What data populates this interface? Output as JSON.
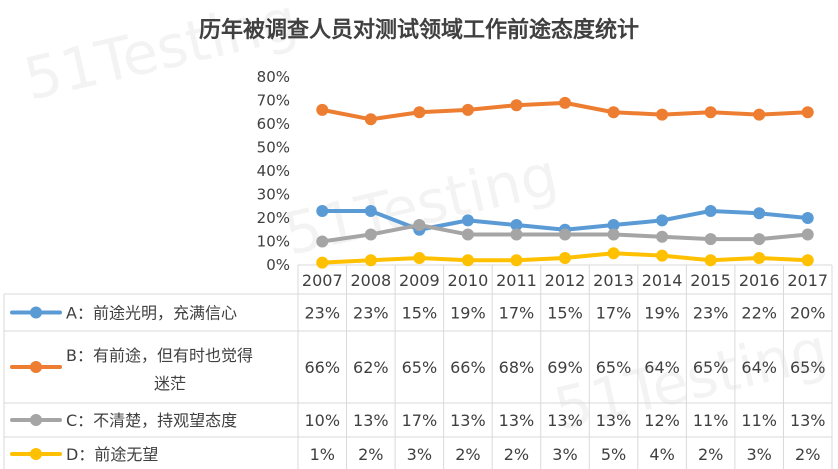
{
  "chart_data": {
    "type": "line",
    "title": "历年被调查人员对测试领域工作前途态度统计",
    "categories": [
      "2007",
      "2008",
      "2009",
      "2010",
      "2011",
      "2012",
      "2013",
      "2014",
      "2015",
      "2016",
      "2017"
    ],
    "ylim": [
      0,
      80
    ],
    "ytick_labels": [
      "0%",
      "10%",
      "20%",
      "30%",
      "40%",
      "50%",
      "60%",
      "70%",
      "80%"
    ],
    "grid": false,
    "legend_placement": "data-table-left",
    "series": [
      {
        "name": "A：前途光明，充满信心",
        "color": "#5B9BD5",
        "values": [
          23,
          23,
          15,
          19,
          17,
          15,
          17,
          19,
          23,
          22,
          20
        ],
        "cells": [
          "23%",
          "23%",
          "15%",
          "19%",
          "17%",
          "15%",
          "17%",
          "19%",
          "23%",
          "22%",
          "20%"
        ]
      },
      {
        "name": "B：有前途，但有时也觉得迷茫",
        "name_lines": [
          "B：有前途，但有时也觉得",
          "迷茫"
        ],
        "color": "#ED7D31",
        "values": [
          66,
          62,
          65,
          66,
          68,
          69,
          65,
          64,
          65,
          64,
          65
        ],
        "cells": [
          "66%",
          "62%",
          "65%",
          "66%",
          "68%",
          "69%",
          "65%",
          "64%",
          "65%",
          "64%",
          "65%"
        ]
      },
      {
        "name": "C：不清楚，持观望态度",
        "color": "#A5A5A5",
        "values": [
          10,
          13,
          17,
          13,
          13,
          13,
          13,
          12,
          11,
          11,
          13
        ],
        "cells": [
          "10%",
          "13%",
          "17%",
          "13%",
          "13%",
          "13%",
          "13%",
          "12%",
          "11%",
          "11%",
          "13%"
        ]
      },
      {
        "name": "D：前途无望",
        "color": "#FFC000",
        "values": [
          1,
          2,
          3,
          2,
          2,
          3,
          5,
          4,
          2,
          3,
          2
        ],
        "cells": [
          "1%",
          "2%",
          "3%",
          "2%",
          "2%",
          "3%",
          "5%",
          "4%",
          "2%",
          "3%",
          "2%"
        ]
      }
    ]
  },
  "watermark": "51Testing"
}
